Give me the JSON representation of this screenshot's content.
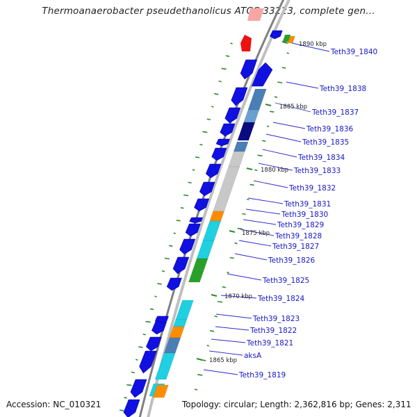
{
  "title": "Thermoanaerobacter pseudethanolicus ATCC 33223, complete gen...",
  "accession": "Accession: NC_010321",
  "summary": "Topology: circular; Length: 2,362,816 bp; Genes: 2,311",
  "kbp_marks": [
    {
      "label": "1890 kbp"
    },
    {
      "label": "1885 kbp"
    },
    {
      "label": "1880 kbp"
    },
    {
      "label": "1875 kbp"
    },
    {
      "label": "1870 kbp"
    },
    {
      "label": "1865 kbp"
    }
  ],
  "gene_labels": [
    {
      "text": "Teth39_1840"
    },
    {
      "text": "Teth39_1838"
    },
    {
      "text": "Teth39_1837"
    },
    {
      "text": "Teth39_1836"
    },
    {
      "text": "Teth39_1835"
    },
    {
      "text": "Teth39_1834"
    },
    {
      "text": "Teth39_1833"
    },
    {
      "text": "Teth39_1832"
    },
    {
      "text": "Teth39_1831"
    },
    {
      "text": "Teth39_1830"
    },
    {
      "text": "Teth39_1829"
    },
    {
      "text": "Teth39_1828"
    },
    {
      "text": "Teth39_1827"
    },
    {
      "text": "Teth39_1826"
    },
    {
      "text": "Teth39_1825"
    },
    {
      "text": "Teth39_1824"
    },
    {
      "text": "Teth39_1823"
    },
    {
      "text": "Teth39_1822"
    },
    {
      "text": "Teth39_1821"
    },
    {
      "text": "aksA"
    },
    {
      "text": "Teth39_1819"
    }
  ],
  "colors": {
    "gene_blue": "#1010e0",
    "label_blue": "#1515c8",
    "backbone": "#888888",
    "gc_tick": "#2a8a2a",
    "steelblue": "#4a7fb5",
    "lightblue": "#6aa0cf",
    "navy": "#0b0b80",
    "gray": "#c8c8c8",
    "orange": "#ff8c00",
    "cyan": "#1fd0e0",
    "green": "#2aa02a",
    "red": "#ee1111",
    "pink": "#f7a6a6"
  }
}
